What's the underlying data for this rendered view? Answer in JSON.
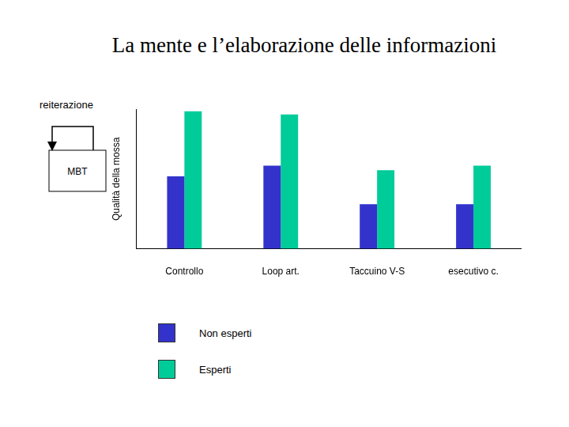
{
  "chart_data": {
    "type": "bar",
    "title": "La mente e l’elaborazione delle informazioni",
    "y_label": "Qualità della mossa",
    "categories": [
      "Controllo",
      "Loop art.",
      "Taccuino V-S",
      "esecutivo c."
    ],
    "series": [
      {
        "name": "Non esperti",
        "color": "#3333cc",
        "values": [
          96,
          110,
          59,
          59
        ]
      },
      {
        "name": "Esperti",
        "color": "#00cc99",
        "values": [
          182,
          178,
          104,
          110
        ]
      }
    ],
    "ylim": [
      0,
      185
    ],
    "tick_labels": "x",
    "grid": false,
    "legend": "bottom"
  },
  "diagram": {
    "label": "reiterazione",
    "box": "MBT"
  }
}
